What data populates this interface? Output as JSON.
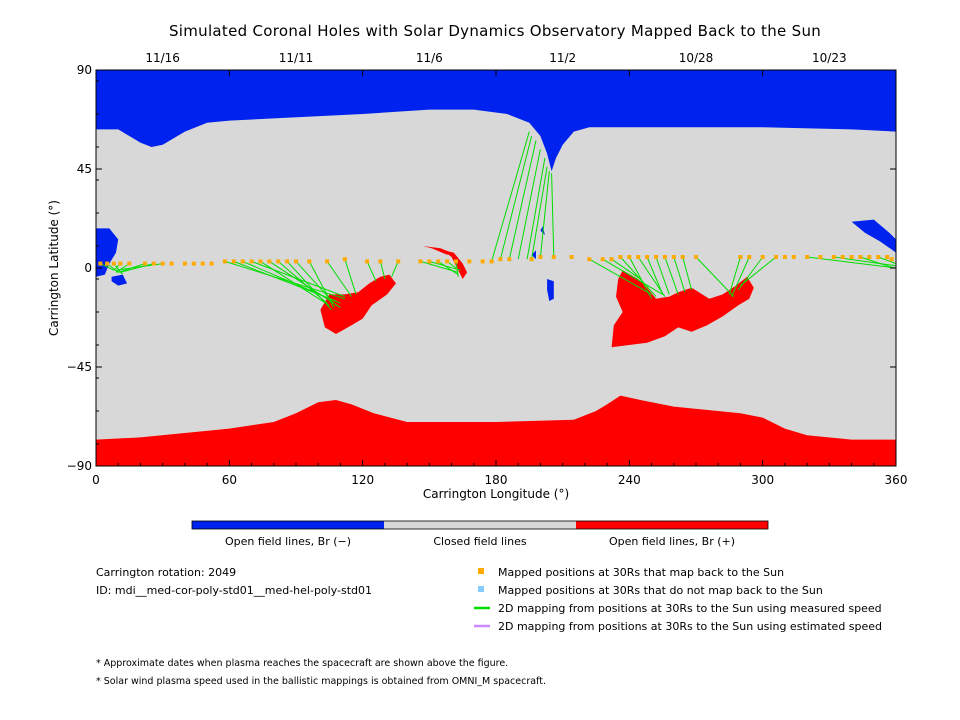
{
  "chart_data": {
    "type": "map",
    "title": "Simulated Coronal Holes with Solar Dynamics Observatory Mapped Back to the Sun",
    "xlabel": "Carrington Longitude (°)",
    "ylabel": "Carrington Latitude (°)",
    "xlim": [
      0,
      360
    ],
    "ylim": [
      -90,
      90
    ],
    "x_ticks": [
      "0",
      "60",
      "120",
      "180",
      "240",
      "300",
      "360"
    ],
    "y_ticks": [
      "90",
      "45",
      "0",
      "−45",
      "−90"
    ],
    "date_ticks": [
      {
        "label": "11/16",
        "lon": 30
      },
      {
        "label": "11/11",
        "lon": 90
      },
      {
        "label": "11/6",
        "lon": 150
      },
      {
        "label": "11/2",
        "lon": 210
      },
      {
        "label": "10/28",
        "lon": 270
      },
      {
        "label": "10/23",
        "lon": 330
      }
    ],
    "colorbar": {
      "segments": [
        {
          "label": "Open field lines, Br (−)",
          "color": "#0022ee"
        },
        {
          "label": "Closed field lines",
          "color": "#d8d8d8"
        },
        {
          "label": "Open field lines, Br (+)",
          "color": "#ff0000"
        }
      ]
    },
    "regions": {
      "negative_polar": [
        [
          0,
          63
        ],
        [
          10,
          63
        ],
        [
          20,
          57
        ],
        [
          25,
          55
        ],
        [
          30,
          56
        ],
        [
          40,
          62
        ],
        [
          50,
          66
        ],
        [
          60,
          67
        ],
        [
          80,
          68
        ],
        [
          120,
          70
        ],
        [
          150,
          72
        ],
        [
          170,
          72
        ],
        [
          185,
          70
        ],
        [
          195,
          66
        ],
        [
          200,
          60
        ],
        [
          203,
          52
        ],
        [
          205,
          44
        ],
        [
          207,
          50
        ],
        [
          210,
          56
        ],
        [
          215,
          62
        ],
        [
          222,
          64
        ],
        [
          250,
          64
        ],
        [
          300,
          64
        ],
        [
          340,
          63
        ],
        [
          360,
          62
        ],
        [
          360,
          90
        ],
        [
          0,
          90
        ]
      ],
      "positive_polar": [
        [
          0,
          -78
        ],
        [
          20,
          -77
        ],
        [
          40,
          -75
        ],
        [
          60,
          -73
        ],
        [
          80,
          -70
        ],
        [
          90,
          -66
        ],
        [
          100,
          -61
        ],
        [
          108,
          -60
        ],
        [
          115,
          -62
        ],
        [
          125,
          -66
        ],
        [
          140,
          -70
        ],
        [
          180,
          -70
        ],
        [
          215,
          -69
        ],
        [
          225,
          -65
        ],
        [
          230,
          -62
        ],
        [
          236,
          -58
        ],
        [
          245,
          -60
        ],
        [
          260,
          -63
        ],
        [
          290,
          -66
        ],
        [
          300,
          -68
        ],
        [
          310,
          -73
        ],
        [
          320,
          -76
        ],
        [
          340,
          -78
        ],
        [
          360,
          -78
        ],
        [
          360,
          -90
        ],
        [
          0,
          -90
        ]
      ],
      "negative_holes": [
        [
          [
            0,
            18
          ],
          [
            6,
            18
          ],
          [
            10,
            13
          ],
          [
            9,
            7
          ],
          [
            6,
            2
          ],
          [
            4,
            -3
          ],
          [
            0,
            -4
          ]
        ],
        [
          [
            7,
            -4
          ],
          [
            12,
            -3
          ],
          [
            14,
            -7
          ],
          [
            10,
            -8
          ],
          [
            7,
            -6
          ]
        ],
        [
          [
            203,
            -5
          ],
          [
            206,
            -6
          ],
          [
            206,
            -14
          ],
          [
            204,
            -15
          ],
          [
            203,
            -10
          ]
        ],
        [
          [
            340,
            21
          ],
          [
            350,
            22
          ],
          [
            357,
            16
          ],
          [
            360,
            13
          ],
          [
            360,
            7
          ],
          [
            353,
            12
          ],
          [
            346,
            16
          ]
        ],
        [
          [
            200,
            17
          ],
          [
            202,
            15
          ],
          [
            201,
            19
          ]
        ],
        [
          [
            196,
            6
          ],
          [
            198,
            4
          ],
          [
            198,
            8
          ]
        ]
      ],
      "positive_holes": [
        [
          [
            112,
            -12
          ],
          [
            118,
            -11
          ],
          [
            123,
            -7
          ],
          [
            128,
            -4
          ],
          [
            132,
            -3
          ],
          [
            135,
            -7
          ],
          [
            131,
            -12
          ],
          [
            124,
            -17
          ],
          [
            120,
            -23
          ],
          [
            115,
            -26
          ],
          [
            108,
            -30
          ],
          [
            103,
            -27
          ],
          [
            101,
            -19
          ],
          [
            105,
            -12
          ]
        ],
        [
          [
            156,
            8
          ],
          [
            160,
            5
          ],
          [
            163,
            -1
          ],
          [
            165,
            -5
          ],
          [
            167,
            -2
          ],
          [
            165,
            2
          ],
          [
            161,
            7
          ]
        ],
        [
          [
            237,
            -1
          ],
          [
            244,
            -5
          ],
          [
            248,
            -9
          ],
          [
            252,
            -14
          ],
          [
            258,
            -13
          ],
          [
            262,
            -11
          ],
          [
            268,
            -9
          ],
          [
            276,
            -14
          ],
          [
            282,
            -12
          ],
          [
            288,
            -8
          ],
          [
            293,
            -4
          ],
          [
            296,
            -9
          ],
          [
            294,
            -14
          ],
          [
            289,
            -17
          ],
          [
            282,
            -22
          ],
          [
            275,
            -26
          ],
          [
            268,
            -29
          ],
          [
            262,
            -27
          ],
          [
            256,
            -31
          ],
          [
            248,
            -34
          ],
          [
            240,
            -35
          ],
          [
            232,
            -36
          ],
          [
            233,
            -26
          ],
          [
            237,
            -20
          ],
          [
            234,
            -13
          ],
          [
            235,
            -5
          ]
        ]
      ],
      "red_streak": [
        [
          147,
          10
        ],
        [
          155,
          9
        ],
        [
          160,
          7
        ],
        [
          158,
          6
        ],
        [
          151,
          9
        ]
      ]
    },
    "mapped_points_30Rs": [
      [
        2,
        2
      ],
      [
        5,
        2
      ],
      [
        8,
        2
      ],
      [
        11,
        2
      ],
      [
        15,
        2
      ],
      [
        22,
        2
      ],
      [
        26,
        2
      ],
      [
        30,
        2
      ],
      [
        34,
        2
      ],
      [
        40,
        2
      ],
      [
        44,
        2
      ],
      [
        48,
        2
      ],
      [
        52,
        2
      ],
      [
        58,
        3
      ],
      [
        62,
        3
      ],
      [
        66,
        3
      ],
      [
        70,
        3
      ],
      [
        74,
        3
      ],
      [
        78,
        3
      ],
      [
        82,
        3
      ],
      [
        86,
        3
      ],
      [
        90,
        3
      ],
      [
        96,
        3
      ],
      [
        104,
        3
      ],
      [
        112,
        4
      ],
      [
        122,
        3
      ],
      [
        128,
        3
      ],
      [
        136,
        3
      ],
      [
        146,
        3
      ],
      [
        150,
        3
      ],
      [
        154,
        3
      ],
      [
        158,
        3
      ],
      [
        162,
        3
      ],
      [
        168,
        3
      ],
      [
        174,
        3
      ],
      [
        178,
        3
      ],
      [
        182,
        4
      ],
      [
        186,
        4
      ],
      [
        196,
        4
      ],
      [
        200,
        5
      ],
      [
        206,
        5
      ],
      [
        214,
        5
      ],
      [
        222,
        4
      ],
      [
        228,
        4
      ],
      [
        232,
        4
      ],
      [
        236,
        5
      ],
      [
        240,
        5
      ],
      [
        244,
        5
      ],
      [
        248,
        5
      ],
      [
        252,
        5
      ],
      [
        256,
        5
      ],
      [
        260,
        5
      ],
      [
        264,
        5
      ],
      [
        270,
        5
      ],
      [
        290,
        5
      ],
      [
        294,
        5
      ],
      [
        300,
        5
      ],
      [
        306,
        5
      ],
      [
        310,
        5
      ],
      [
        314,
        5
      ],
      [
        320,
        5
      ],
      [
        326,
        5
      ],
      [
        332,
        5
      ],
      [
        336,
        5
      ],
      [
        340,
        5
      ],
      [
        344,
        5
      ],
      [
        348,
        5
      ],
      [
        352,
        5
      ],
      [
        356,
        5
      ],
      [
        358,
        4
      ]
    ],
    "mapped_points_not_back": [],
    "mapping_lines_measured": [
      [
        [
          2,
          2
        ],
        [
          8,
          -1
        ]
      ],
      [
        [
          5,
          2
        ],
        [
          10,
          -2
        ]
      ],
      [
        [
          8,
          2
        ],
        [
          12,
          -3
        ]
      ],
      [
        [
          11,
          2
        ],
        [
          8,
          -1
        ]
      ],
      [
        [
          15,
          2
        ],
        [
          9,
          -2
        ]
      ],
      [
        [
          22,
          2
        ],
        [
          10,
          -2
        ]
      ],
      [
        [
          26,
          2
        ],
        [
          11,
          -2
        ]
      ],
      [
        [
          30,
          2
        ],
        [
          9,
          -1
        ]
      ],
      [
        [
          58,
          3
        ],
        [
          112,
          -14
        ]
      ],
      [
        [
          62,
          3
        ],
        [
          108,
          -15
        ]
      ],
      [
        [
          66,
          3
        ],
        [
          110,
          -16
        ]
      ],
      [
        [
          70,
          3
        ],
        [
          112,
          -13
        ]
      ],
      [
        [
          74,
          3
        ],
        [
          105,
          -17
        ]
      ],
      [
        [
          78,
          3
        ],
        [
          110,
          -18
        ]
      ],
      [
        [
          82,
          3
        ],
        [
          104,
          -16
        ]
      ],
      [
        [
          86,
          3
        ],
        [
          106,
          -19
        ]
      ],
      [
        [
          90,
          3
        ],
        [
          108,
          -17
        ]
      ],
      [
        [
          96,
          3
        ],
        [
          107,
          -18
        ]
      ],
      [
        [
          104,
          3
        ],
        [
          115,
          -13
        ]
      ],
      [
        [
          112,
          4
        ],
        [
          117,
          -12
        ]
      ],
      [
        [
          122,
          3
        ],
        [
          126,
          -6
        ]
      ],
      [
        [
          128,
          3
        ],
        [
          130,
          -5
        ]
      ],
      [
        [
          136,
          3
        ],
        [
          133,
          -4
        ]
      ],
      [
        [
          146,
          3
        ],
        [
          163,
          -2
        ]
      ],
      [
        [
          150,
          3
        ],
        [
          164,
          -1
        ]
      ],
      [
        [
          154,
          3
        ],
        [
          163,
          -3
        ]
      ],
      [
        [
          158,
          3
        ],
        [
          162,
          0
        ]
      ],
      [
        [
          162,
          3
        ],
        [
          163,
          -4
        ]
      ],
      [
        [
          178,
          3
        ],
        [
          195,
          62
        ]
      ],
      [
        [
          182,
          4
        ],
        [
          196,
          60
        ]
      ],
      [
        [
          186,
          4
        ],
        [
          198,
          58
        ]
      ],
      [
        [
          190,
          4
        ],
        [
          200,
          54
        ]
      ],
      [
        [
          194,
          4
        ],
        [
          202,
          50
        ]
      ],
      [
        [
          196,
          4
        ],
        [
          203,
          46
        ]
      ],
      [
        [
          200,
          5
        ],
        [
          204,
          44
        ]
      ],
      [
        [
          206,
          5
        ],
        [
          205,
          43
        ]
      ],
      [
        [
          222,
          4
        ],
        [
          250,
          -12
        ]
      ],
      [
        [
          228,
          4
        ],
        [
          255,
          -12
        ]
      ],
      [
        [
          232,
          4
        ],
        [
          245,
          -5
        ]
      ],
      [
        [
          236,
          5
        ],
        [
          252,
          -13
        ]
      ],
      [
        [
          240,
          5
        ],
        [
          250,
          -14
        ]
      ],
      [
        [
          244,
          5
        ],
        [
          256,
          -13
        ]
      ],
      [
        [
          248,
          5
        ],
        [
          255,
          -12
        ]
      ],
      [
        [
          252,
          5
        ],
        [
          258,
          -12
        ]
      ],
      [
        [
          256,
          5
        ],
        [
          262,
          -12
        ]
      ],
      [
        [
          260,
          5
        ],
        [
          265,
          -11
        ]
      ],
      [
        [
          264,
          5
        ],
        [
          268,
          -10
        ]
      ],
      [
        [
          270,
          5
        ],
        [
          287,
          -13
        ]
      ],
      [
        [
          290,
          5
        ],
        [
          285,
          -12
        ]
      ],
      [
        [
          294,
          5
        ],
        [
          286,
          -13
        ]
      ],
      [
        [
          300,
          5
        ],
        [
          289,
          -10
        ]
      ],
      [
        [
          306,
          5
        ],
        [
          290,
          -8
        ]
      ],
      [
        [
          320,
          5
        ],
        [
          360,
          0
        ]
      ],
      [
        [
          332,
          5
        ],
        [
          360,
          1
        ]
      ],
      [
        [
          344,
          5
        ],
        [
          359,
          0
        ]
      ],
      [
        [
          352,
          5
        ],
        [
          360,
          2
        ]
      ]
    ],
    "mapping_lines_estimated": []
  },
  "info": {
    "rotation": "Carrington rotation: 2049",
    "id": "ID: mdi__med-cor-poly-std01__med-hel-poly-std01"
  },
  "legend": [
    {
      "label": "Mapped positions at 30Rs that map back to the Sun",
      "symbol": "square",
      "color": "#ffaa00"
    },
    {
      "label": "Mapped positions at 30Rs that do not map back to the Sun",
      "symbol": "square",
      "color": "#88ccff"
    },
    {
      "label": "2D mapping from positions at 30Rs to the Sun using measured speed",
      "symbol": "line",
      "color": "#00dd00"
    },
    {
      "label": "2D mapping from positions at 30Rs to the Sun using estimated speed",
      "symbol": "line",
      "color": "#cc88ff"
    }
  ],
  "notes": [
    "* Approximate dates when plasma reaches the spacecraft are shown above the figure.",
    "* Solar wind plasma speed used in the ballistic mappings is obtained from OMNI_M spacecraft."
  ],
  "colors": {
    "negative": "#0022ee",
    "closed": "#d8d8d8",
    "positive": "#ff0000",
    "mapped": "#ffaa00",
    "measured": "#00dd00"
  }
}
